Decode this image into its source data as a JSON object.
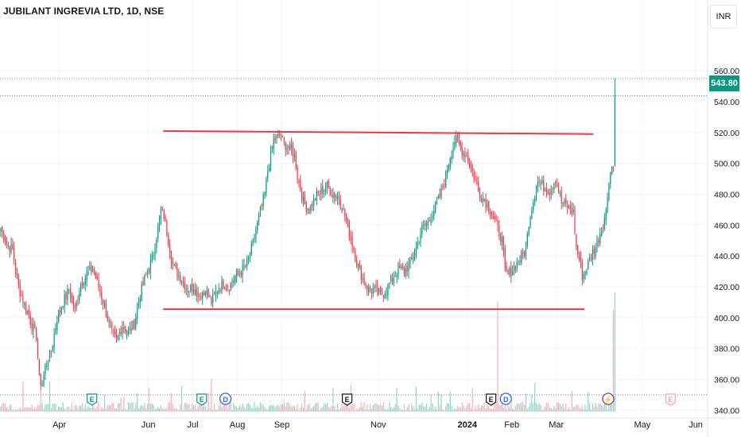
{
  "header": {
    "title": "JUBILANT INGREVIA LTD, 1D, NSE",
    "currency": "INR"
  },
  "price": {
    "last": 543.8,
    "last_label": "543.80"
  },
  "colors": {
    "up": "#089981",
    "down": "#f23645",
    "trendline": "#f23645",
    "volume_up": "#7ecfc0",
    "volume_down": "#f7a1a8",
    "grid": "#f0f3fa",
    "axis_text": "#131722"
  },
  "chart_data": {
    "type": "candlestick",
    "title": "JUBILANT INGREVIA LTD, 1D, NSE",
    "ylim": [
      335,
      575
    ],
    "y_ticks": [
      340,
      360,
      380,
      400,
      420,
      440,
      460,
      480,
      500,
      520,
      540,
      560
    ],
    "y_tick_labels": [
      "340.00",
      "360.00",
      "380.00",
      "400.00",
      "420.00",
      "440.00",
      "460.00",
      "480.00",
      "500.00",
      "520.00",
      "540.00",
      "560.00"
    ],
    "x_tick_labels": [
      "Apr",
      "Jun",
      "Jul",
      "Aug",
      "Sep",
      "Nov",
      "2024",
      "Feb",
      "Mar",
      "May",
      "Jun"
    ],
    "x_tick_days": [
      40,
      100,
      130,
      160,
      190,
      255,
      315,
      345,
      375,
      433,
      469
    ],
    "last_day": 414,
    "total_days": 477,
    "price_anchors": [
      [
        0,
        458
      ],
      [
        4,
        448
      ],
      [
        8,
        444
      ],
      [
        12,
        420
      ],
      [
        16,
        408
      ],
      [
        20,
        398
      ],
      [
        24,
        388
      ],
      [
        26,
        360
      ],
      [
        28,
        357
      ],
      [
        30,
        368
      ],
      [
        34,
        378
      ],
      [
        38,
        400
      ],
      [
        42,
        410
      ],
      [
        46,
        418
      ],
      [
        50,
        405
      ],
      [
        54,
        422
      ],
      [
        58,
        428
      ],
      [
        62,
        432
      ],
      [
        66,
        420
      ],
      [
        70,
        408
      ],
      [
        74,
        392
      ],
      [
        78,
        385
      ],
      [
        82,
        395
      ],
      [
        86,
        390
      ],
      [
        90,
        396
      ],
      [
        94,
        415
      ],
      [
        98,
        428
      ],
      [
        102,
        438
      ],
      [
        106,
        458
      ],
      [
        108,
        470
      ],
      [
        110,
        466
      ],
      [
        113,
        450
      ],
      [
        116,
        434
      ],
      [
        118,
        430
      ],
      [
        122,
        425
      ],
      [
        126,
        418
      ],
      [
        130,
        420
      ],
      [
        134,
        415
      ],
      [
        138,
        418
      ],
      [
        142,
        410
      ],
      [
        146,
        418
      ],
      [
        150,
        422
      ],
      [
        154,
        420
      ],
      [
        158,
        427
      ],
      [
        162,
        430
      ],
      [
        166,
        435
      ],
      [
        170,
        448
      ],
      [
        174,
        465
      ],
      [
        178,
        480
      ],
      [
        180,
        495
      ],
      [
        184,
        515
      ],
      [
        188,
        518
      ],
      [
        192,
        512
      ],
      [
        196,
        508
      ],
      [
        198,
        505
      ],
      [
        200,
        492
      ],
      [
        204,
        475
      ],
      [
        208,
        470
      ],
      [
        212,
        478
      ],
      [
        216,
        482
      ],
      [
        220,
        485
      ],
      [
        224,
        480
      ],
      [
        228,
        478
      ],
      [
        232,
        466
      ],
      [
        236,
        452
      ],
      [
        240,
        436
      ],
      [
        244,
        425
      ],
      [
        248,
        418
      ],
      [
        252,
        418
      ],
      [
        256,
        415
      ],
      [
        260,
        418
      ],
      [
        264,
        425
      ],
      [
        268,
        432
      ],
      [
        272,
        430
      ],
      [
        276,
        435
      ],
      [
        280,
        445
      ],
      [
        284,
        458
      ],
      [
        288,
        462
      ],
      [
        292,
        470
      ],
      [
        296,
        478
      ],
      [
        300,
        492
      ],
      [
        303,
        505
      ],
      [
        306,
        515
      ],
      [
        308,
        514
      ],
      [
        310,
        510
      ],
      [
        314,
        505
      ],
      [
        318,
        495
      ],
      [
        322,
        482
      ],
      [
        326,
        476
      ],
      [
        330,
        470
      ],
      [
        334,
        460
      ],
      [
        338,
        450
      ],
      [
        340,
        430
      ],
      [
        342,
        428
      ],
      [
        346,
        432
      ],
      [
        350,
        438
      ],
      [
        354,
        444
      ],
      [
        356,
        462
      ],
      [
        358,
        472
      ],
      [
        362,
        488
      ],
      [
        366,
        485
      ],
      [
        370,
        482
      ],
      [
        374,
        490
      ],
      [
        378,
        475
      ],
      [
        382,
        472
      ],
      [
        386,
        468
      ],
      [
        388,
        445
      ],
      [
        390,
        438
      ],
      [
        392,
        427
      ],
      [
        394,
        430
      ],
      [
        398,
        440
      ],
      [
        402,
        448
      ],
      [
        404,
        455
      ],
      [
        408,
        468
      ],
      [
        410,
        490
      ],
      [
        412,
        498
      ],
      [
        413,
        496
      ],
      [
        414,
        543.8
      ]
    ],
    "trendlines": [
      {
        "name": "resistance",
        "start": [
          110,
          521
        ],
        "end": [
          400,
          519
        ]
      },
      {
        "name": "support",
        "start": [
          110,
          405.5
        ],
        "end": [
          394,
          405.5
        ]
      }
    ],
    "events": [
      {
        "day": 62,
        "label": "E",
        "color": "#089981"
      },
      {
        "day": 136,
        "label": "E",
        "color": "#089981"
      },
      {
        "day": 152,
        "label": "D",
        "color": "#2962ff"
      },
      {
        "day": 234,
        "label": "E",
        "color": "#131722"
      },
      {
        "day": 331,
        "label": "E",
        "color": "#131722"
      },
      {
        "day": 341,
        "label": "D",
        "color": "#2962ff"
      },
      {
        "day": 410,
        "label": "⚡",
        "color": "#9c27b0"
      },
      {
        "day": 452,
        "label": "E",
        "color": "#f7a1a8"
      }
    ]
  }
}
